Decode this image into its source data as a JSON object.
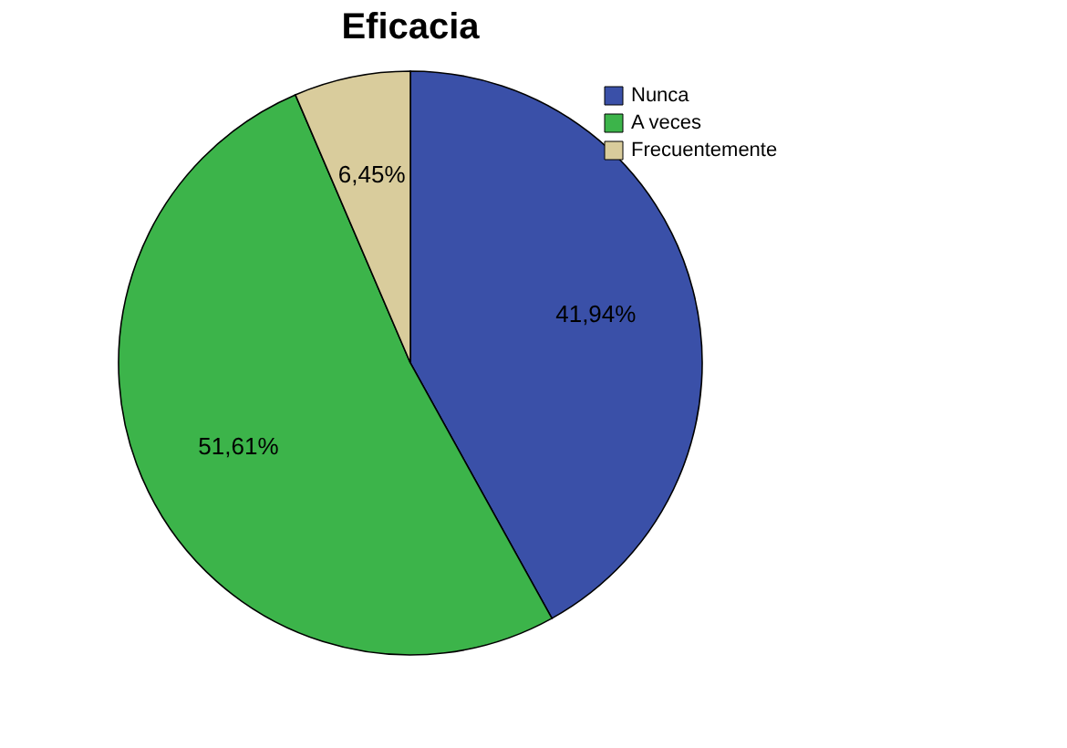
{
  "chart_data": {
    "type": "pie",
    "title": "Eficacia",
    "categories": [
      "Nunca",
      "A veces",
      "Frecuentemente"
    ],
    "values": [
      41.94,
      51.61,
      6.45
    ],
    "colors": [
      "#3a50a8",
      "#3cb44a",
      "#d9cc9c"
    ],
    "value_labels": [
      "41,94%",
      "51,61%",
      "6,45%"
    ],
    "legend": "top right"
  }
}
